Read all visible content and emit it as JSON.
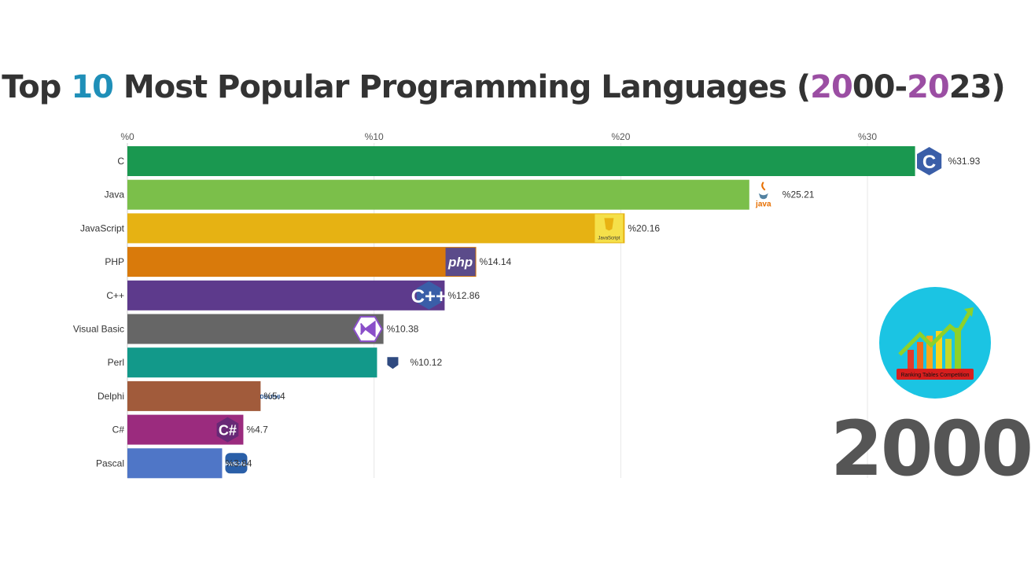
{
  "title": {
    "segments": [
      {
        "text": "Top ",
        "color": "#333333"
      },
      {
        "text": "10",
        "color": "#1f8fb8"
      },
      {
        "text": " Most Popular Programming Languages (",
        "color": "#333333"
      },
      {
        "text": "20",
        "color": "#9b4ea3"
      },
      {
        "text": "00-",
        "color": "#333333"
      },
      {
        "text": "20",
        "color": "#9b4ea3"
      },
      {
        "text": "23)",
        "color": "#333333"
      }
    ]
  },
  "year_label": "2000",
  "brand_logo": {
    "icon": "ranking-chart-logo-icon",
    "text": "Ranking Tables Competition",
    "colors": {
      "circle": "#1bc4e3",
      "arrow": "#8ed12a",
      "ribbon": "#d71e1e"
    }
  },
  "chart_data": {
    "type": "bar",
    "orientation": "horizontal",
    "value_prefix": "%",
    "xlim": [
      0,
      30.7
    ],
    "xticks": [
      0,
      10,
      20,
      30
    ],
    "xtick_labels": [
      "%0",
      "%10",
      "%20",
      "%30"
    ],
    "grid": true,
    "categories": [
      "C",
      "Java",
      "JavaScript",
      "PHP",
      "C++",
      "Visual Basic",
      "Perl",
      "Delphi",
      "C#",
      "Pascal"
    ],
    "values": [
      31.93,
      25.21,
      20.16,
      14.14,
      12.86,
      10.38,
      10.12,
      5.4,
      4.7,
      3.84
    ],
    "value_labels": [
      "%31.93",
      "%25.21",
      "%20.16",
      "%14.14",
      "%12.86",
      "%10.38",
      "%10.12",
      "%5.4",
      "%4.7",
      "%3.84"
    ],
    "colors": [
      "#1a9850",
      "#7bbf4a",
      "#e6b213",
      "#d97a0b",
      "#5d3a8c",
      "#666666",
      "#12998a",
      "#a15b3b",
      "#9b2b7e",
      "#4f76c7"
    ],
    "icons": [
      "c-logo-icon",
      "java-logo-icon",
      "javascript-logo-icon",
      "php-logo-icon",
      "cpp-logo-icon",
      "visual-basic-logo-icon",
      "perl-logo-icon",
      "delphi-logo-icon",
      "csharp-logo-icon",
      "pascal-logo-icon"
    ],
    "icon_texts": [
      "C",
      "java",
      "JavaScript",
      "php",
      "C++",
      "",
      "",
      "DELPHI",
      "C#",
      "PASCAL"
    ]
  }
}
